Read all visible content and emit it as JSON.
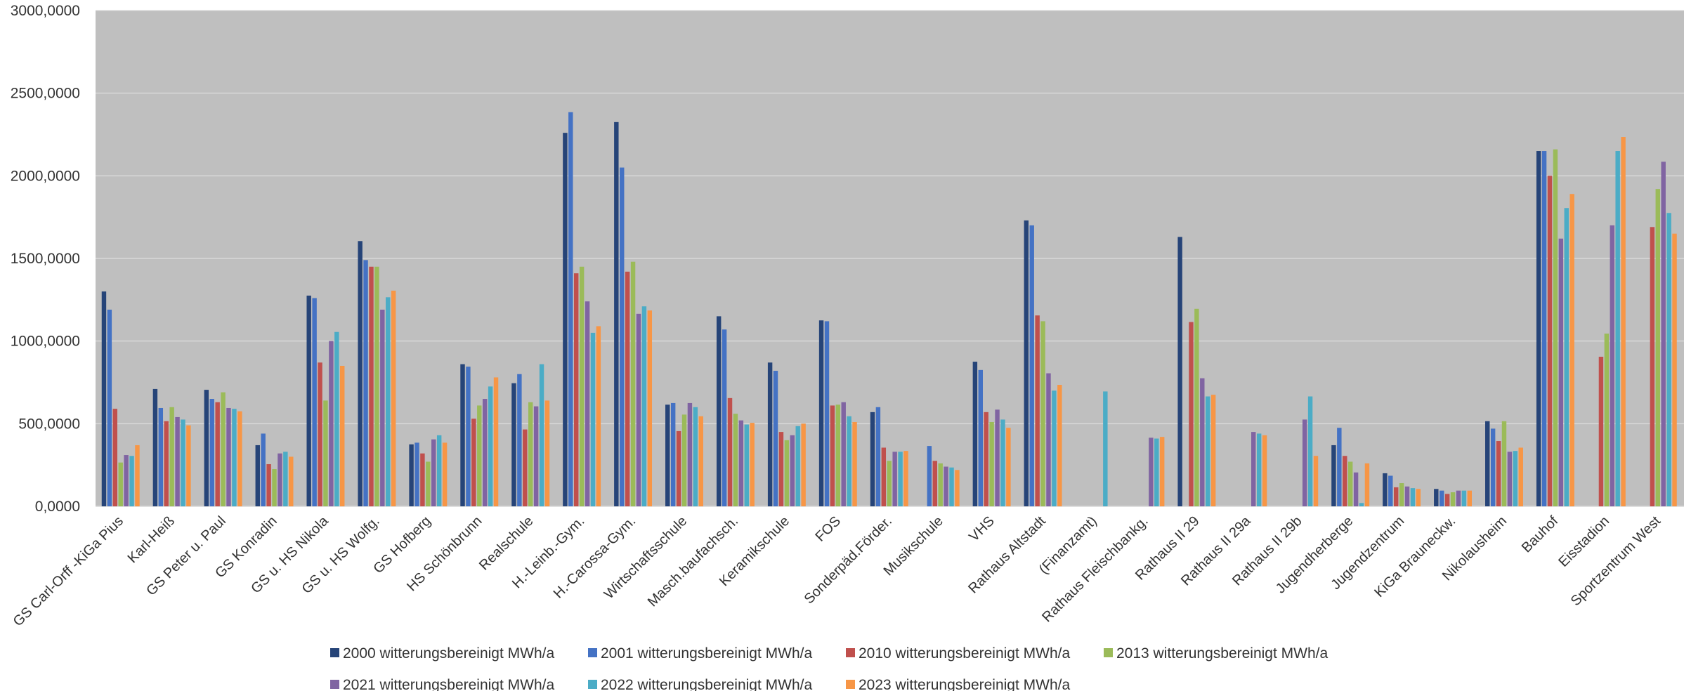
{
  "chart_data": {
    "type": "bar",
    "title": "",
    "xlabel": "",
    "ylabel": "",
    "ylim": [
      0,
      3000
    ],
    "yticks": [
      "0,0000",
      "500,0000",
      "1000,0000",
      "1500,0000",
      "2000,0000",
      "2500,0000",
      "3000,0000"
    ],
    "grid": true,
    "legend_position": "bottom",
    "background": "#BFBFBF",
    "categories": [
      "GS Carl-Orff -KiGa Pius",
      "Karl-Heiß",
      "GS Peter u. Paul",
      "GS Konradin",
      "GS u. HS Nikola",
      "GS u. HS Wolfg.",
      "GS Hofberg",
      "HS Schönbrunn",
      "Realschule",
      "H.-Leinb.-Gym.",
      "H.-Carossa-Gym.",
      "Wirtschaftsschule",
      "Masch.baufachsch.",
      "Keramikschule",
      "FOS",
      "Sonderpäd.Förder.",
      "Musikschule",
      "VHS",
      "Rathaus Altstadt",
      "(Finanzamt)",
      "Rathaus Fleischbankg.",
      "Rathaus II 29",
      "Rathaus II 29a",
      "Rathaus II 29b",
      "Jugendherberge",
      "Jugendzentrum",
      "KiGa Brauneckw.",
      "Nikolausheim",
      "Bauhof",
      "Eisstadion",
      "Sportzentrum West"
    ],
    "series": [
      {
        "name": "2000 witterungsbereinigt MWh/a",
        "color": "#264478",
        "values": [
          1300,
          710,
          705,
          370,
          1275,
          1605,
          375,
          860,
          745,
          2260,
          2325,
          615,
          1150,
          870,
          1125,
          570,
          null,
          875,
          1730,
          null,
          null,
          1630,
          null,
          null,
          370,
          200,
          105,
          515,
          2150,
          null,
          null
        ]
      },
      {
        "name": "2001 witterungsbereinigt MWh/a",
        "color": "#4472C4",
        "values": [
          1190,
          595,
          650,
          440,
          1260,
          1490,
          385,
          845,
          800,
          2385,
          2050,
          625,
          1070,
          820,
          1120,
          600,
          365,
          825,
          1700,
          null,
          null,
          null,
          null,
          null,
          475,
          185,
          95,
          470,
          2150,
          null,
          null
        ]
      },
      {
        "name": "2010 witterungsbereinigt MWh/a",
        "color": "#C0504D",
        "values": [
          590,
          515,
          630,
          255,
          870,
          1450,
          320,
          530,
          465,
          1410,
          1420,
          455,
          655,
          450,
          610,
          355,
          275,
          570,
          1155,
          null,
          null,
          1115,
          null,
          null,
          305,
          115,
          75,
          395,
          2000,
          905,
          1690
        ]
      },
      {
        "name": "2013 witterungsbereinigt MWh/a",
        "color": "#9BBB59",
        "values": [
          265,
          600,
          690,
          225,
          640,
          1450,
          270,
          610,
          630,
          1450,
          1480,
          555,
          560,
          400,
          615,
          275,
          260,
          510,
          1120,
          null,
          null,
          1195,
          null,
          null,
          270,
          140,
          85,
          515,
          2160,
          1045,
          1920
        ]
      },
      {
        "name": "2021 witterungsbereinigt MWh/a",
        "color": "#8064A2",
        "values": [
          310,
          540,
          595,
          320,
          1000,
          1190,
          405,
          650,
          605,
          1240,
          1165,
          625,
          520,
          430,
          630,
          330,
          240,
          585,
          805,
          null,
          415,
          775,
          450,
          525,
          205,
          120,
          95,
          330,
          1620,
          1700,
          2085
        ]
      },
      {
        "name": "2022 witterungsbereinigt MWh/a",
        "color": "#4BACC6",
        "values": [
          305,
          525,
          590,
          330,
          1055,
          1265,
          430,
          725,
          860,
          1050,
          1210,
          600,
          495,
          485,
          545,
          330,
          235,
          525,
          700,
          695,
          410,
          665,
          440,
          665,
          20,
          110,
          95,
          335,
          1805,
          2150,
          1775
        ]
      },
      {
        "name": "2023 witterungsbereinigt MWh/a",
        "color": "#F79646",
        "values": [
          370,
          490,
          575,
          300,
          850,
          1305,
          385,
          780,
          640,
          1090,
          1185,
          545,
          505,
          500,
          510,
          335,
          220,
          475,
          735,
          null,
          420,
          675,
          430,
          305,
          260,
          105,
          95,
          355,
          1890,
          2235,
          1650
        ]
      }
    ]
  }
}
